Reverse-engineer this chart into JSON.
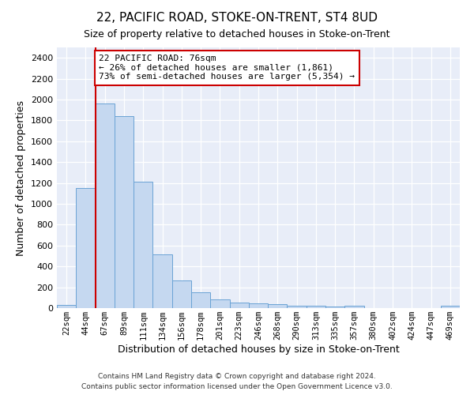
{
  "title1": "22, PACIFIC ROAD, STOKE-ON-TRENT, ST4 8UD",
  "title2": "Size of property relative to detached houses in Stoke-on-Trent",
  "xlabel": "Distribution of detached houses by size in Stoke-on-Trent",
  "ylabel": "Number of detached properties",
  "bar_color": "#c5d8f0",
  "bar_edge_color": "#6aa3d5",
  "categories": [
    "22sqm",
    "44sqm",
    "67sqm",
    "89sqm",
    "111sqm",
    "134sqm",
    "156sqm",
    "178sqm",
    "201sqm",
    "223sqm",
    "246sqm",
    "268sqm",
    "290sqm",
    "313sqm",
    "335sqm",
    "357sqm",
    "380sqm",
    "402sqm",
    "424sqm",
    "447sqm",
    "469sqm"
  ],
  "values": [
    30,
    1150,
    1960,
    1840,
    1215,
    515,
    265,
    155,
    80,
    50,
    45,
    40,
    22,
    20,
    13,
    20,
    0,
    0,
    0,
    0,
    20
  ],
  "annotation_line1": "22 PACIFIC ROAD: 76sqm",
  "annotation_line2": "← 26% of detached houses are smaller (1,861)",
  "annotation_line3": "73% of semi-detached houses are larger (5,354) →",
  "annotation_box_color": "#ffffff",
  "annotation_box_edge": "#cc0000",
  "vline_x": 1.5,
  "vline_color": "#cc0000",
  "ylim": [
    0,
    2500
  ],
  "yticks": [
    0,
    200,
    400,
    600,
    800,
    1000,
    1200,
    1400,
    1600,
    1800,
    2000,
    2200,
    2400
  ],
  "background_color": "#e8edf8",
  "grid_color": "#ffffff",
  "footer1": "Contains HM Land Registry data © Crown copyright and database right 2024.",
  "footer2": "Contains public sector information licensed under the Open Government Licence v3.0.",
  "title1_fontsize": 11,
  "title2_fontsize": 9,
  "ylabel_fontsize": 9,
  "xlabel_fontsize": 9
}
